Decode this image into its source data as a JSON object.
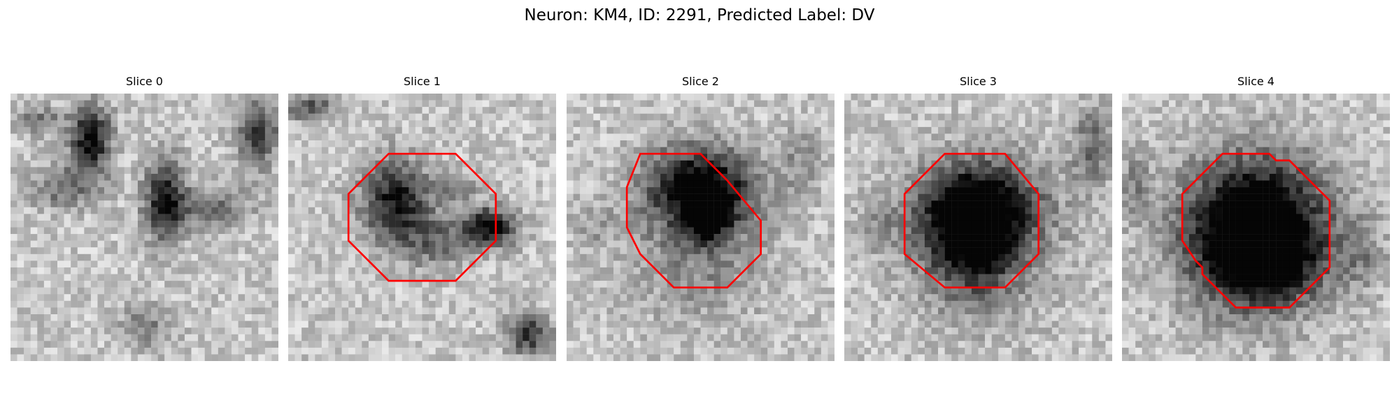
{
  "figure": {
    "title": "Neuron: KM4, ID: 2291, Predicted Label: DV",
    "contour_color": "#ff0000"
  },
  "panels": [
    {
      "title": "Slice 0",
      "has_contour": false
    },
    {
      "title": "Slice 1",
      "has_contour": true
    },
    {
      "title": "Slice 2",
      "has_contour": true
    },
    {
      "title": "Slice 3",
      "has_contour": true
    },
    {
      "title": "Slice 4",
      "has_contour": true
    }
  ]
}
